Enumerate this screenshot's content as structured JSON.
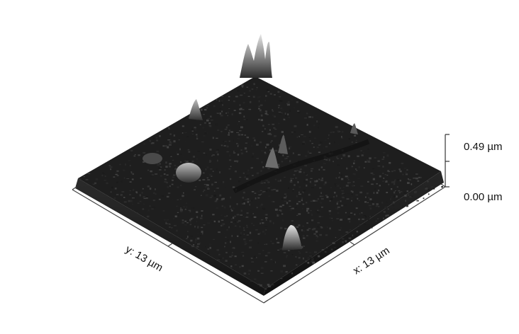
{
  "scan": {
    "x_axis_label": "x: 13 µm",
    "y_axis_label": "y: 13 µm",
    "z_scale_max_label": "0.49 µm",
    "z_scale_min_label": "0.00 µm",
    "surface_color_dark": "#1e1e1e",
    "surface_color_light": "#d8d8d8"
  }
}
